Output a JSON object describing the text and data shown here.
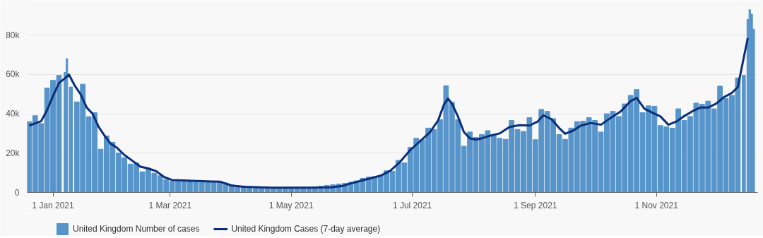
{
  "chart_data": {
    "type": "bar",
    "xlim": [
      "2020-12-19",
      "2021-12-22"
    ],
    "xticks": [
      {
        "value": "2021-01-01",
        "label": "1 Jan 2021"
      },
      {
        "value": "2021-03-01",
        "label": "1 Mar 2021"
      },
      {
        "value": "2021-05-01",
        "label": "1 May 2021"
      },
      {
        "value": "2021-07-01",
        "label": "1 Jul 2021"
      },
      {
        "value": "2021-09-01",
        "label": "1 Sep 2021"
      },
      {
        "value": "2021-11-01",
        "label": "1 Nov 2021"
      }
    ],
    "ylim": [
      0,
      94000
    ],
    "yticks": [
      0,
      {
        "value": 20000,
        "label": "20k"
      },
      {
        "value": 40000,
        "label": "40k"
      },
      {
        "value": 60000,
        "label": "60k"
      },
      {
        "value": 80000,
        "label": "80k"
      }
    ],
    "grid": "y",
    "legend": "bottom",
    "series": [
      {
        "name": "United Kingdom Number of cases",
        "color": "#5694ca",
        "x": [
          "2020-12-20",
          "2020-12-23",
          "2020-12-26",
          "2020-12-29",
          "2021-01-01",
          "2021-01-04",
          "2021-01-07",
          "2021-01-08",
          "2021-01-10",
          "2021-01-13",
          "2021-01-16",
          "2021-01-19",
          "2021-01-22",
          "2021-01-25",
          "2021-01-28",
          "2021-01-31",
          "2021-02-03",
          "2021-02-06",
          "2021-02-09",
          "2021-02-12",
          "2021-02-15",
          "2021-02-18",
          "2021-02-21",
          "2021-02-24",
          "2021-02-27",
          "2021-03-02",
          "2021-03-05",
          "2021-03-08",
          "2021-03-11",
          "2021-03-14",
          "2021-03-17",
          "2021-03-20",
          "2021-03-23",
          "2021-03-26",
          "2021-03-29",
          "2021-04-01",
          "2021-04-04",
          "2021-04-07",
          "2021-04-10",
          "2021-04-13",
          "2021-04-16",
          "2021-04-19",
          "2021-04-22",
          "2021-04-25",
          "2021-04-28",
          "2021-05-01",
          "2021-05-04",
          "2021-05-07",
          "2021-05-10",
          "2021-05-13",
          "2021-05-16",
          "2021-05-19",
          "2021-05-22",
          "2021-05-25",
          "2021-05-28",
          "2021-05-31",
          "2021-06-03",
          "2021-06-06",
          "2021-06-09",
          "2021-06-12",
          "2021-06-15",
          "2021-06-18",
          "2021-06-21",
          "2021-06-24",
          "2021-06-27",
          "2021-06-30",
          "2021-07-03",
          "2021-07-06",
          "2021-07-09",
          "2021-07-12",
          "2021-07-15",
          "2021-07-18",
          "2021-07-21",
          "2021-07-24",
          "2021-07-27",
          "2021-07-30",
          "2021-08-02",
          "2021-08-05",
          "2021-08-08",
          "2021-08-11",
          "2021-08-14",
          "2021-08-17",
          "2021-08-20",
          "2021-08-23",
          "2021-08-26",
          "2021-08-29",
          "2021-09-01",
          "2021-09-04",
          "2021-09-07",
          "2021-09-10",
          "2021-09-13",
          "2021-09-16",
          "2021-09-19",
          "2021-09-22",
          "2021-09-25",
          "2021-09-28",
          "2021-10-01",
          "2021-10-04",
          "2021-10-07",
          "2021-10-10",
          "2021-10-13",
          "2021-10-16",
          "2021-10-19",
          "2021-10-22",
          "2021-10-25",
          "2021-10-28",
          "2021-10-31",
          "2021-11-03",
          "2021-11-06",
          "2021-11-09",
          "2021-11-12",
          "2021-11-15",
          "2021-11-18",
          "2021-11-21",
          "2021-11-24",
          "2021-11-27",
          "2021-11-30",
          "2021-12-03",
          "2021-12-06",
          "2021-12-09",
          "2021-12-12",
          "2021-12-15",
          "2021-12-17",
          "2021-12-18",
          "2021-12-19",
          "2021-12-20"
        ],
        "values": [
          36000,
          39000,
          35000,
          53000,
          57000,
          59500,
          61000,
          68000,
          53600,
          46000,
          55000,
          38500,
          40500,
          22000,
          28700,
          25500,
          20000,
          17600,
          14400,
          15000,
          10500,
          11800,
          9800,
          8500,
          6500,
          5600,
          5500,
          5600,
          5900,
          5500,
          5600,
          5500,
          5600,
          5600,
          4800,
          3900,
          3500,
          3300,
          3000,
          2600,
          2500,
          2400,
          2500,
          2500,
          2500,
          2600,
          2600,
          2700,
          2800,
          2800,
          3200,
          3600,
          3900,
          4300,
          4600,
          5200,
          5900,
          7200,
          7800,
          8100,
          8500,
          11000,
          10800,
          16300,
          15000,
          22900,
          27500,
          26800,
          32700,
          32000,
          37000,
          54200,
          45800,
          37000,
          23500,
          30700,
          28000,
          29400,
          31400,
          29400,
          27500,
          27000,
          36600,
          32000,
          31000,
          38000,
          26800,
          42200,
          41200,
          37500,
          29400,
          27000,
          32700,
          36000,
          36200,
          38000,
          36600,
          30700,
          40000,
          41200,
          38600,
          45000,
          49300,
          52300,
          40500,
          44000,
          43800,
          34000,
          33300,
          32700,
          42500,
          36600,
          38600,
          45400,
          44800,
          46400,
          42500,
          54000,
          47700,
          49300,
          58200,
          59500,
          88000,
          92800,
          90600,
          83000
        ]
      },
      {
        "name": "United Kingdom Cases (7-day average)",
        "type": "line",
        "color": "#0b2f7a",
        "x": [
          "2020-12-20",
          "2020-12-26",
          "2020-12-29",
          "2021-01-01",
          "2021-01-04",
          "2021-01-07",
          "2021-01-09",
          "2021-01-12",
          "2021-01-15",
          "2021-01-18",
          "2021-01-21",
          "2021-01-24",
          "2021-01-27",
          "2021-01-30",
          "2021-02-02",
          "2021-02-06",
          "2021-02-10",
          "2021-02-14",
          "2021-02-18",
          "2021-02-22",
          "2021-02-26",
          "2021-03-02",
          "2021-03-12",
          "2021-03-22",
          "2021-03-26",
          "2021-04-01",
          "2021-04-07",
          "2021-04-21",
          "2021-05-11",
          "2021-05-21",
          "2021-05-27",
          "2021-05-31",
          "2021-06-05",
          "2021-06-10",
          "2021-06-15",
          "2021-06-20",
          "2021-06-25",
          "2021-06-30",
          "2021-07-05",
          "2021-07-10",
          "2021-07-14",
          "2021-07-17",
          "2021-07-19",
          "2021-07-21",
          "2021-07-24",
          "2021-07-27",
          "2021-07-30",
          "2021-08-02",
          "2021-08-05",
          "2021-08-08",
          "2021-08-14",
          "2021-08-19",
          "2021-08-24",
          "2021-08-29",
          "2021-09-02",
          "2021-09-05",
          "2021-09-09",
          "2021-09-13",
          "2021-09-16",
          "2021-09-20",
          "2021-09-24",
          "2021-09-29",
          "2021-10-04",
          "2021-10-09",
          "2021-10-14",
          "2021-10-19",
          "2021-10-22",
          "2021-10-26",
          "2021-10-30",
          "2021-11-03",
          "2021-11-07",
          "2021-11-11",
          "2021-11-15",
          "2021-11-19",
          "2021-11-23",
          "2021-11-27",
          "2021-12-01",
          "2021-12-05",
          "2021-12-09",
          "2021-12-12",
          "2021-12-15",
          "2021-12-17"
        ],
        "values": [
          34000,
          36200,
          41800,
          49000,
          55600,
          58000,
          59900,
          54200,
          49700,
          43100,
          39900,
          33300,
          28800,
          24800,
          22900,
          19000,
          16100,
          13100,
          12200,
          10800,
          7800,
          6300,
          5900,
          5600,
          5500,
          3500,
          2900,
          2400,
          2400,
          2600,
          3300,
          4600,
          5900,
          7200,
          8500,
          11100,
          15700,
          21600,
          26100,
          30700,
          36600,
          44800,
          47700,
          45100,
          38600,
          30700,
          27500,
          26800,
          27500,
          28500,
          30000,
          33300,
          34200,
          34000,
          35900,
          39200,
          37300,
          32700,
          29800,
          31400,
          34000,
          35300,
          34400,
          37900,
          41200,
          46400,
          48000,
          42500,
          40500,
          38600,
          34400,
          36000,
          38800,
          41200,
          43100,
          43100,
          45100,
          48400,
          50600,
          53600,
          68600,
          78400
        ]
      }
    ]
  }
}
